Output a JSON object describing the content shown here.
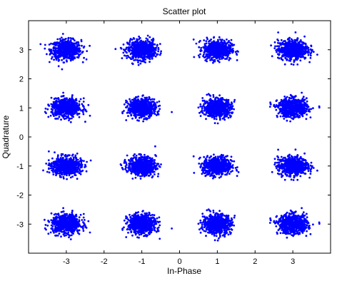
{
  "chart_data": {
    "type": "scatter",
    "title": "Scatter plot",
    "xlabel": "In-Phase",
    "ylabel": "Quadrature",
    "xlim": [
      -4,
      4
    ],
    "ylim": [
      -4,
      4
    ],
    "xticks": [
      -3,
      -2,
      -1,
      0,
      1,
      2,
      3
    ],
    "yticks": [
      -3,
      -2,
      -1,
      0,
      1,
      2,
      3
    ],
    "grid": false,
    "marker_color": "#0000ff",
    "constellation_points": [
      {
        "x": -3,
        "y": 3
      },
      {
        "x": -1,
        "y": 3
      },
      {
        "x": 1,
        "y": 3
      },
      {
        "x": 3,
        "y": 3
      },
      {
        "x": -3,
        "y": 1
      },
      {
        "x": -1,
        "y": 1
      },
      {
        "x": 1,
        "y": 1
      },
      {
        "x": 3,
        "y": 1
      },
      {
        "x": -3,
        "y": -1
      },
      {
        "x": -1,
        "y": -1
      },
      {
        "x": 1,
        "y": -1
      },
      {
        "x": 3,
        "y": -1
      },
      {
        "x": -3,
        "y": -3
      },
      {
        "x": -1,
        "y": -3
      },
      {
        "x": 1,
        "y": -3
      },
      {
        "x": 3,
        "y": -3
      }
    ],
    "noise_spread": 0.18
  }
}
